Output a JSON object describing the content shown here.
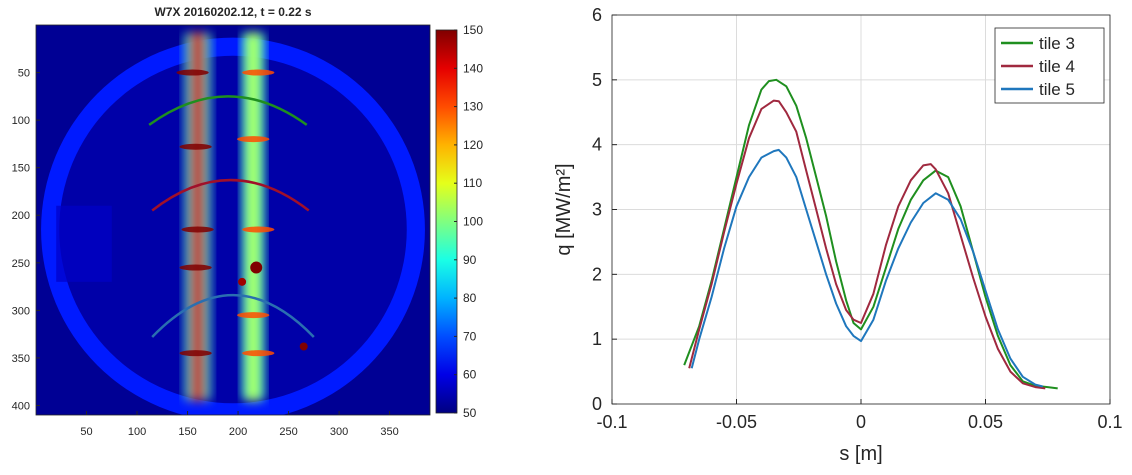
{
  "chart_data": [
    {
      "type": "heatmap",
      "title": "W7X 20160202.12, t = 0.22 s",
      "xlim": [
        0,
        390
      ],
      "ylim": [
        410,
        0
      ],
      "x_ticks": [
        50,
        100,
        150,
        200,
        250,
        300,
        350
      ],
      "y_ticks": [
        50,
        100,
        150,
        200,
        250,
        300,
        350,
        400
      ],
      "colorbar": {
        "range": [
          50,
          150
        ],
        "ticks": [
          50,
          60,
          70,
          80,
          90,
          100,
          110,
          120,
          130,
          140,
          150
        ],
        "colormap": "jet"
      },
      "background_level": 65,
      "outside_level": 52,
      "strike_lines": [
        {
          "x_center": 160,
          "width": 26,
          "level": 140
        },
        {
          "x_center": 215,
          "width": 22,
          "level": 108
        }
      ],
      "arcs": [
        {
          "name": "tile 3",
          "x_start": 112,
          "x_end": 268,
          "y_edge": 105,
          "y_mid": 75,
          "color": "#1f8f1f"
        },
        {
          "name": "tile 4",
          "x_start": 115,
          "x_end": 270,
          "y_edge": 195,
          "y_mid": 163,
          "color": "#a0102a"
        },
        {
          "name": "tile 5",
          "x_start": 115,
          "x_end": 275,
          "y_edge": 328,
          "y_mid": 284,
          "color": "#2a6fb0"
        }
      ]
    },
    {
      "type": "line",
      "xlabel": "s [m]",
      "ylabel": "q [MW/m²]",
      "xlim": [
        -0.1,
        0.1
      ],
      "ylim": [
        0,
        6
      ],
      "x_ticks": [
        -0.1,
        -0.05,
        0,
        0.05,
        0.1
      ],
      "x_tick_labels": [
        "-0.1",
        "-0.05",
        "0",
        "0.05",
        "0.1"
      ],
      "y_ticks": [
        0,
        1,
        2,
        3,
        4,
        5,
        6
      ],
      "grid": true,
      "legend": "top-right",
      "series": [
        {
          "name": "tile 3",
          "color": "#1f8f1f",
          "x": [
            -0.071,
            -0.065,
            -0.06,
            -0.055,
            -0.05,
            -0.045,
            -0.04,
            -0.037,
            -0.034,
            -0.03,
            -0.026,
            -0.022,
            -0.018,
            -0.014,
            -0.01,
            -0.006,
            -0.003,
            0,
            0.005,
            0.01,
            0.015,
            0.02,
            0.025,
            0.03,
            0.035,
            0.04,
            0.045,
            0.05,
            0.055,
            0.06,
            0.065,
            0.07,
            0.075,
            0.079
          ],
          "y": [
            0.6,
            1.2,
            1.9,
            2.7,
            3.5,
            4.3,
            4.85,
            4.98,
            5.0,
            4.9,
            4.6,
            4.1,
            3.5,
            2.9,
            2.2,
            1.6,
            1.25,
            1.15,
            1.5,
            2.1,
            2.7,
            3.15,
            3.45,
            3.6,
            3.5,
            3.05,
            2.35,
            1.65,
            1.05,
            0.6,
            0.35,
            0.28,
            0.26,
            0.24
          ]
        },
        {
          "name": "tile 4",
          "color": "#a0293f",
          "x": [
            -0.069,
            -0.065,
            -0.06,
            -0.055,
            -0.05,
            -0.045,
            -0.04,
            -0.035,
            -0.033,
            -0.03,
            -0.026,
            -0.022,
            -0.018,
            -0.014,
            -0.01,
            -0.006,
            -0.003,
            0,
            0.005,
            0.01,
            0.015,
            0.02,
            0.025,
            0.028,
            0.03,
            0.035,
            0.04,
            0.045,
            0.05,
            0.055,
            0.06,
            0.065,
            0.07,
            0.074
          ],
          "y": [
            0.55,
            1.15,
            1.85,
            2.65,
            3.4,
            4.1,
            4.55,
            4.68,
            4.67,
            4.5,
            4.2,
            3.6,
            3.0,
            2.4,
            1.85,
            1.45,
            1.3,
            1.25,
            1.7,
            2.45,
            3.05,
            3.45,
            3.68,
            3.7,
            3.62,
            3.25,
            2.6,
            1.95,
            1.35,
            0.85,
            0.5,
            0.32,
            0.26,
            0.24
          ]
        },
        {
          "name": "tile 5",
          "color": "#1f77bd",
          "x": [
            -0.068,
            -0.065,
            -0.06,
            -0.055,
            -0.05,
            -0.045,
            -0.04,
            -0.035,
            -0.033,
            -0.03,
            -0.026,
            -0.022,
            -0.018,
            -0.014,
            -0.01,
            -0.006,
            -0.003,
            0,
            0.005,
            0.01,
            0.015,
            0.02,
            0.025,
            0.03,
            0.035,
            0.04,
            0.045,
            0.05,
            0.055,
            0.06,
            0.065,
            0.07,
            0.073
          ],
          "y": [
            0.55,
            1.0,
            1.65,
            2.4,
            3.05,
            3.5,
            3.8,
            3.9,
            3.92,
            3.8,
            3.5,
            3.0,
            2.5,
            2.0,
            1.55,
            1.2,
            1.05,
            0.97,
            1.3,
            1.9,
            2.4,
            2.8,
            3.1,
            3.25,
            3.15,
            2.85,
            2.35,
            1.75,
            1.15,
            0.7,
            0.42,
            0.3,
            0.27
          ]
        }
      ]
    }
  ]
}
